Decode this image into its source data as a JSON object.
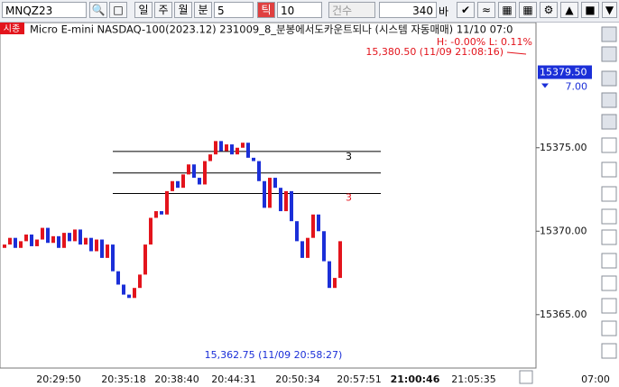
{
  "toolbar": {
    "symbol": "MNQZ23",
    "periods": [
      "일",
      "주",
      "월",
      "분"
    ],
    "period_value": "5",
    "tick": "틱",
    "tick_value": "10",
    "count": "건수",
    "bars": "340",
    "bars_unit": "바"
  },
  "chart_data": {
    "type": "candlestick",
    "corner_label": "시종",
    "title": "Micro E-mini NASDAQ-100(2023.12) 231009_8_분봉에서도카운트되나 (시스템 자동매매) 11/10 07:0",
    "hl_note": "H: -0.00%   L: 0.11%",
    "high_note": "15,380.50 (11/09 21:08:16)",
    "low_note": "15,362.75 (11/09 20:58:27)",
    "open": [
      15369.0,
      15369.2,
      15369.6,
      15369.0,
      15369.4,
      15369.8,
      15369.1,
      15369.5,
      15370.2,
      15369.3,
      15369.7,
      15369.0,
      15369.9,
      15369.4,
      15370.1,
      15369.2,
      15369.6,
      15368.8,
      15369.5,
      15368.4,
      15369.2,
      15367.6,
      15366.8,
      15366.2,
      15366.0,
      15366.6,
      15367.4,
      15369.2,
      15370.8,
      15371.2,
      15371.0,
      15372.4,
      15373.0,
      15372.6,
      15373.4,
      15374.0,
      15373.2,
      15372.8,
      15374.2,
      15374.6,
      15375.4,
      15374.8,
      15375.2,
      15374.6,
      15375.0,
      15375.3,
      15374.4,
      15374.2,
      15373.0,
      15371.4,
      15373.2,
      15372.6,
      15371.2,
      15372.4,
      15370.6,
      15369.4,
      15368.4,
      15369.6,
      15371.0,
      15370.0,
      15368.2,
      15366.6,
      15367.2
    ],
    "close": [
      15369.2,
      15369.6,
      15369.0,
      15369.4,
      15369.8,
      15369.1,
      15369.5,
      15370.2,
      15369.3,
      15369.7,
      15369.0,
      15369.9,
      15369.4,
      15370.1,
      15369.2,
      15369.6,
      15368.8,
      15369.5,
      15368.4,
      15369.2,
      15367.6,
      15366.8,
      15366.2,
      15366.0,
      15366.6,
      15367.4,
      15369.2,
      15370.8,
      15371.2,
      15371.0,
      15372.4,
      15373.0,
      15372.6,
      15373.4,
      15374.0,
      15373.2,
      15372.8,
      15374.2,
      15374.6,
      15375.4,
      15374.8,
      15375.2,
      15374.6,
      15375.0,
      15375.3,
      15374.4,
      15374.2,
      15373.0,
      15371.4,
      15373.2,
      15372.6,
      15371.2,
      15372.4,
      15370.6,
      15369.4,
      15368.4,
      15369.6,
      15371.0,
      15370.0,
      15368.2,
      15366.6,
      15367.2,
      15369.4
    ],
    "up_color": "#e3141c",
    "down_color": "#1b2fd8",
    "ylim": [
      15361.8,
      15382.5
    ],
    "yticks": [
      {
        "value": 15375,
        "label": "15375.00"
      },
      {
        "value": 15370,
        "label": "15370.00"
      },
      {
        "value": 15365,
        "label": "15365.00"
      }
    ],
    "xtick_labels": [
      "20:29:50",
      "20:35:18",
      "20:38:40",
      "20:44:31",
      "20:50:34",
      "20:57:51",
      "21:00:46",
      "21:05:35",
      "07:00"
    ],
    "last_price": {
      "value": 15379.5,
      "label": "15379.50"
    },
    "last_change": "7.00",
    "levels": [
      {
        "value": 15374.78,
        "label": "3",
        "color": "#000000"
      },
      {
        "value": 15373.49,
        "color": "#000000"
      },
      {
        "value": 15372.26,
        "label": "3",
        "color": "#e3141c"
      }
    ]
  }
}
